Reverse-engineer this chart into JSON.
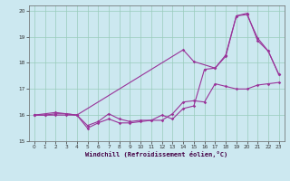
{
  "xlabel": "Windchill (Refroidissement éolien,°C)",
  "background_color": "#cce8f0",
  "grid_color": "#99ccbb",
  "line_color": "#993399",
  "xlim": [
    -0.5,
    23.5
  ],
  "ylim": [
    15.0,
    20.2
  ],
  "yticks": [
    15,
    16,
    17,
    18,
    19,
    20
  ],
  "xticks": [
    0,
    1,
    2,
    3,
    4,
    5,
    6,
    7,
    8,
    9,
    10,
    11,
    12,
    13,
    14,
    15,
    16,
    17,
    18,
    19,
    20,
    21,
    22,
    23
  ],
  "line1_x": [
    0,
    1,
    2,
    3,
    4,
    5,
    6,
    7,
    8,
    9,
    10,
    11,
    12,
    13,
    14,
    15,
    16,
    17,
    18,
    19,
    20,
    21,
    22,
    23
  ],
  "line1_y": [
    16.0,
    16.0,
    16.0,
    16.0,
    16.0,
    15.6,
    15.75,
    16.05,
    15.85,
    15.75,
    15.8,
    15.8,
    15.8,
    16.05,
    16.5,
    16.55,
    16.5,
    17.2,
    17.1,
    17.0,
    17.0,
    17.15,
    17.2,
    17.25
  ],
  "line2_x": [
    0,
    1,
    2,
    3,
    4,
    5,
    6,
    7,
    8,
    9,
    10,
    11,
    12,
    13,
    14,
    15,
    16,
    17,
    18,
    19,
    20,
    21,
    22,
    23
  ],
  "line2_y": [
    16.0,
    16.0,
    16.05,
    16.05,
    16.0,
    15.5,
    15.7,
    15.85,
    15.7,
    15.7,
    15.75,
    15.8,
    16.0,
    15.85,
    16.25,
    16.35,
    17.75,
    17.8,
    18.25,
    19.8,
    19.85,
    18.95,
    18.45,
    17.55
  ],
  "line3_x": [
    0,
    2,
    3,
    4,
    14,
    15,
    17,
    18,
    19,
    20,
    21,
    22,
    23
  ],
  "line3_y": [
    16.0,
    16.1,
    16.05,
    16.0,
    18.5,
    18.05,
    17.8,
    18.3,
    19.8,
    19.9,
    18.85,
    18.45,
    17.55
  ]
}
